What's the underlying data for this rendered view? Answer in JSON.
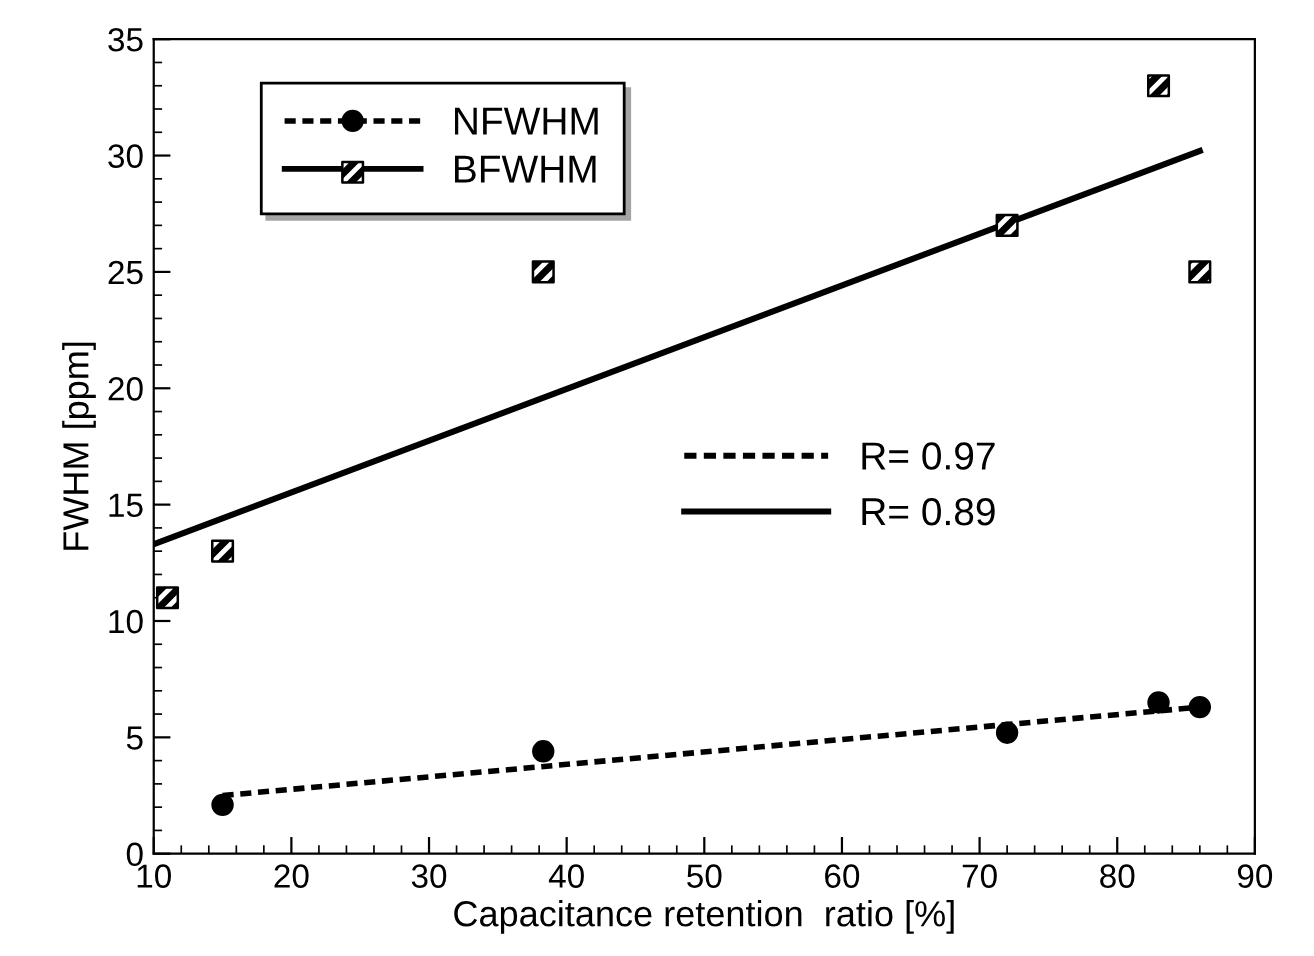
{
  "chart_data": {
    "type": "scatter",
    "xlabel": "Capacitance retention  ratio [%]",
    "ylabel": "FWHM [ppm]",
    "xlim": [
      10,
      90
    ],
    "xticks": [
      10,
      20,
      30,
      40,
      50,
      60,
      70,
      80,
      90
    ],
    "ylim": [
      0,
      35
    ],
    "yticks": [
      0,
      5,
      10,
      15,
      20,
      25,
      30,
      35
    ],
    "grid": false,
    "legend": "top left",
    "series": [
      {
        "name": "NFWHM",
        "marker": "circle",
        "line_style": "dotted",
        "color": "#000000",
        "x": [
          15,
          38.3,
          72,
          83,
          86
        ],
        "values": [
          2.1,
          4.4,
          5.2,
          6.5,
          6.3
        ]
      },
      {
        "name": "BFWHM",
        "marker": "square",
        "line_style": "solid",
        "color": "#000000",
        "x": [
          11,
          15,
          38.3,
          72,
          83,
          86
        ],
        "values": [
          11,
          13,
          25,
          27,
          33,
          25
        ]
      },
      {
        "name": "R= 0.97",
        "type": "line",
        "marker": "none",
        "line_style": "dotted",
        "color": "#000000",
        "x": [
          15,
          86
        ],
        "values": [
          2.5,
          6.3
        ]
      },
      {
        "name": "R= 0.89",
        "type": "line",
        "marker": "none",
        "line_style": "solid",
        "color": "#000000",
        "x": [
          10,
          86
        ],
        "values": [
          13.3,
          30.2
        ]
      }
    ]
  }
}
